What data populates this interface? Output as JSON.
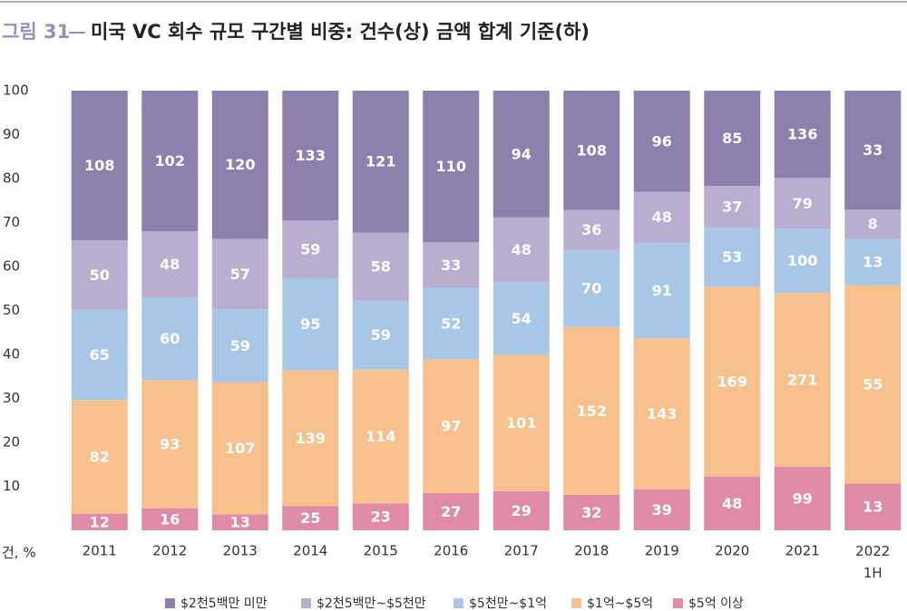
{
  "chart_data": {
    "type": "bar",
    "stacking": "percent",
    "title_prefix": "그림 31",
    "title": "미국 VC 회수 규모 구간별 비중: 건수(상) 금액 합계 기준(하)",
    "y_label": "건, %",
    "categories": [
      "2011",
      "2012",
      "2013",
      "2014",
      "2015",
      "2016",
      "2017",
      "2018",
      "2019",
      "2020",
      "2021",
      "2022 1H"
    ],
    "series": [
      {
        "name": "$2천5백만 미만",
        "color": "#8e80ad",
        "values": [
          108,
          102,
          120,
          133,
          121,
          110,
          94,
          108,
          96,
          85,
          136,
          33
        ]
      },
      {
        "name": "$2천5백만~$5천만",
        "color": "#b9aed0",
        "values": [
          50,
          48,
          57,
          59,
          58,
          33,
          48,
          36,
          48,
          37,
          79,
          8
        ]
      },
      {
        "name": "$5천만~$1억",
        "color": "#a8c7e6",
        "values": [
          65,
          60,
          59,
          95,
          59,
          52,
          54,
          70,
          91,
          53,
          100,
          13
        ]
      },
      {
        "name": "$1억~$5억",
        "color": "#f6c18c",
        "values": [
          82,
          93,
          107,
          139,
          114,
          97,
          101,
          152,
          143,
          169,
          271,
          55
        ]
      },
      {
        "name": "$5억 이상",
        "color": "#e08ba6",
        "values": [
          12,
          16,
          13,
          25,
          23,
          27,
          29,
          32,
          39,
          48,
          99,
          13
        ]
      }
    ],
    "ylim": [
      0,
      100
    ],
    "yticks": [
      10,
      20,
      30,
      40,
      50,
      60,
      70,
      80,
      90,
      100
    ],
    "grid": false,
    "legend": "bottom"
  }
}
